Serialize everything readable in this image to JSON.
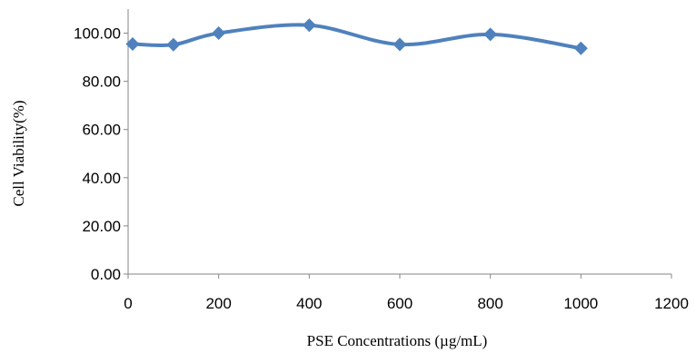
{
  "chart_data": {
    "type": "line",
    "title": "",
    "xlabel": "PSE Concentrations (µg/mL)",
    "ylabel": "Cell Viability(%)",
    "xlim": [
      0,
      1200
    ],
    "ylim": [
      0,
      110
    ],
    "xticks": [
      0,
      200,
      400,
      600,
      800,
      1000,
      1200
    ],
    "xtick_labels": [
      "0",
      "200",
      "400",
      "600",
      "800",
      "1000",
      "1200"
    ],
    "yticks": [
      0,
      20,
      40,
      60,
      80,
      100
    ],
    "ytick_labels": [
      "0.00",
      "20.00",
      "40.00",
      "60.00",
      "80.00",
      "100.00"
    ],
    "grid": false,
    "legend": "none",
    "smooth": true,
    "marker": "diamond",
    "series_color": "#4F81BD",
    "series": [
      {
        "x": [
          10,
          100,
          200,
          400,
          600,
          800,
          1000
        ],
        "values": [
          95.5,
          95.2,
          100.0,
          103.3,
          95.3,
          99.5,
          93.7
        ]
      }
    ]
  }
}
